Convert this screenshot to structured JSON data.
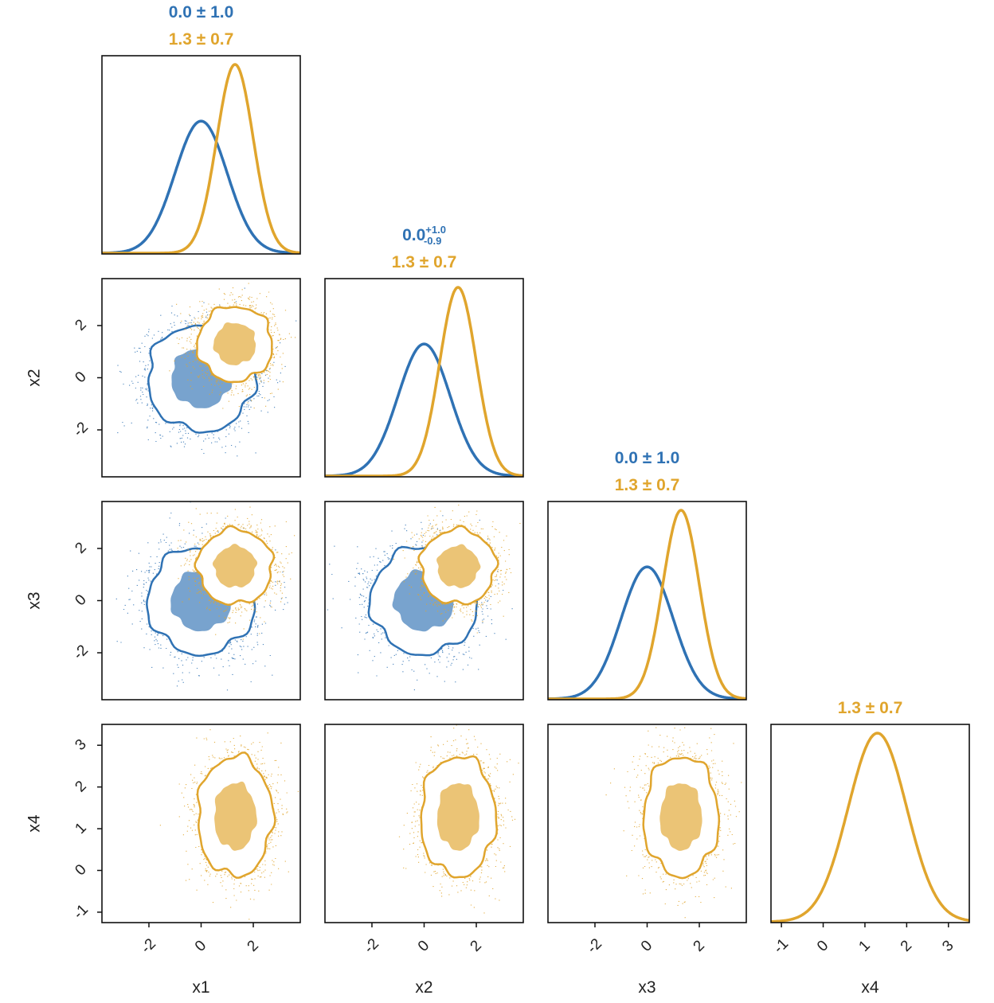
{
  "chart_data": {
    "type": "corner",
    "variables": [
      "x1",
      "x2",
      "x3",
      "x4"
    ],
    "colors": {
      "blue": "#2f72b4",
      "orange": "#e0a52d"
    },
    "series": [
      {
        "color_key": "blue",
        "variables": [
          "x1",
          "x2",
          "x3"
        ],
        "mean": [
          0.0,
          0.0,
          0.0
        ],
        "std": [
          1.0,
          1.0,
          1.0
        ]
      },
      {
        "color_key": "orange",
        "variables": [
          "x1",
          "x2",
          "x3",
          "x4"
        ],
        "mean": [
          1.3,
          1.3,
          1.3,
          1.3
        ],
        "std": [
          0.7,
          0.7,
          0.7,
          0.7
        ]
      }
    ],
    "stats_labels": [
      [
        {
          "color_key": "blue",
          "text": "0.0 ± 1.0"
        },
        {
          "color_key": "orange",
          "text": "1.3 ± 0.7"
        }
      ],
      [
        {
          "color_key": "blue",
          "text": "0.0",
          "sup": "+1.0",
          "sub": "-0.9"
        },
        {
          "color_key": "orange",
          "text": "1.3 ± 0.7"
        }
      ],
      [
        {
          "color_key": "blue",
          "text": "0.0 ± 1.0"
        },
        {
          "color_key": "orange",
          "text": "1.3 ± 0.7"
        }
      ],
      [
        {
          "color_key": "orange",
          "text": "1.3 ± 0.7"
        }
      ]
    ],
    "axis_ranges": [
      [
        -3.8,
        3.8
      ],
      [
        -3.8,
        3.8
      ],
      [
        -3.8,
        3.8
      ],
      [
        -1.25,
        3.5
      ]
    ],
    "ticks": [
      {
        "values": [
          -2,
          0,
          2
        ],
        "labels": [
          "-2",
          "0",
          "2"
        ]
      },
      {
        "values": [
          -2,
          0,
          2
        ],
        "labels": [
          "-2",
          "0",
          "2"
        ]
      },
      {
        "values": [
          -2,
          0,
          2
        ],
        "labels": [
          "-2",
          "0",
          "2"
        ]
      },
      {
        "values": [
          -1,
          0,
          1,
          2,
          3
        ],
        "labels": [
          "-1",
          "0",
          "1",
          "2",
          "3"
        ]
      }
    ],
    "contour_levels_sigma": [
      1,
      2
    ],
    "grid": false,
    "legend": "none"
  }
}
